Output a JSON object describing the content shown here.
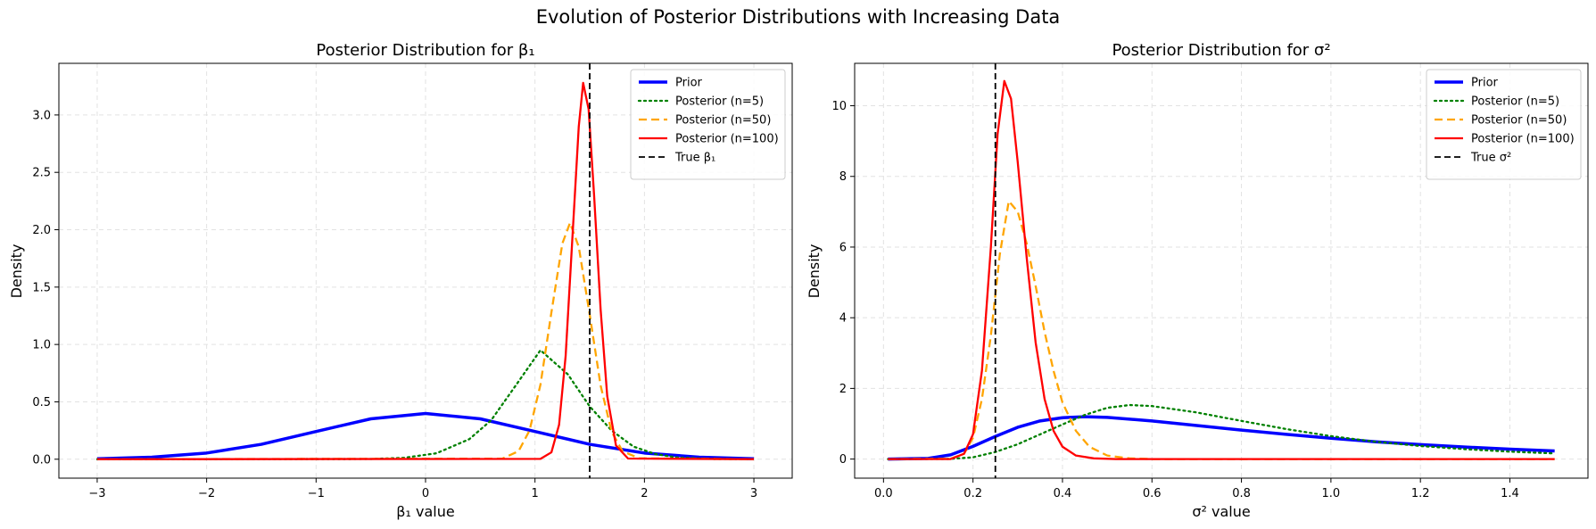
{
  "figure": {
    "title": "Evolution of Posterior Distributions with Increasing Data"
  },
  "chart_data": [
    {
      "type": "line",
      "title": "Posterior Distribution for β₁",
      "xlabel": "β₁ value",
      "ylabel": "Density",
      "xlim": [
        -3.35,
        3.35
      ],
      "ylim": [
        -0.165,
        3.45
      ],
      "xticks": [
        -3,
        -2,
        -1,
        0,
        1,
        2,
        3
      ],
      "xtick_labels": [
        "−3",
        "−2",
        "−1",
        "0",
        "1",
        "2",
        "3"
      ],
      "yticks": [
        0,
        0.5,
        1,
        1.5,
        2,
        2.5,
        3
      ],
      "ytick_labels": [
        "0.0",
        "0.5",
        "1.0",
        "1.5",
        "2.0",
        "2.5",
        "3.0"
      ],
      "grid": true,
      "legend_position": "top-right",
      "reference_line": {
        "name": "True β₁",
        "x": 1.5,
        "color": "#000000"
      },
      "series": [
        {
          "name": "Prior",
          "color": "#0000ff",
          "style": "solid",
          "x": [
            -3,
            -2.5,
            -2,
            -1.5,
            -1,
            -0.5,
            0,
            0.5,
            1,
            1.5,
            2,
            2.5,
            3
          ],
          "y": [
            0.004,
            0.018,
            0.054,
            0.13,
            0.242,
            0.352,
            0.399,
            0.352,
            0.242,
            0.13,
            0.054,
            0.018,
            0.004
          ]
        },
        {
          "name": "Posterior (n=5)",
          "color": "#008000",
          "style": "dotted",
          "x": [
            -3,
            -0.5,
            -0.2,
            0.1,
            0.4,
            0.6,
            0.8,
            1.05,
            1.3,
            1.5,
            1.7,
            1.9,
            2.1,
            2.3,
            2.6,
            3
          ],
          "y": [
            0,
            0.002,
            0.012,
            0.052,
            0.175,
            0.34,
            0.61,
            0.95,
            0.74,
            0.46,
            0.25,
            0.11,
            0.045,
            0.015,
            0.003,
            0
          ]
        },
        {
          "name": "Posterior (n=50)",
          "color": "#ffa500",
          "style": "dashed",
          "x": [
            -3,
            0.7,
            0.85,
            0.95,
            1.05,
            1.15,
            1.25,
            1.32,
            1.4,
            1.5,
            1.6,
            1.7,
            1.8,
            1.95,
            3
          ],
          "y": [
            0,
            0.005,
            0.07,
            0.25,
            0.65,
            1.28,
            1.88,
            2.06,
            1.85,
            1.26,
            0.64,
            0.24,
            0.07,
            0.008,
            0
          ]
        },
        {
          "name": "Posterior (n=100)",
          "color": "#ff0000",
          "style": "solid",
          "x": [
            -3,
            1.05,
            1.15,
            1.22,
            1.28,
            1.34,
            1.4,
            1.44,
            1.49,
            1.54,
            1.6,
            1.66,
            1.74,
            1.85,
            3
          ],
          "y": [
            0,
            0.003,
            0.06,
            0.3,
            0.9,
            1.9,
            2.9,
            3.28,
            3.05,
            2.3,
            1.3,
            0.55,
            0.12,
            0.006,
            0
          ]
        }
      ]
    },
    {
      "type": "line",
      "title": "Posterior Distribution for σ²",
      "xlabel": "σ² value",
      "ylabel": "Density",
      "xlim": [
        -0.0645,
        1.5745
      ],
      "ylim": [
        -0.54,
        11.2
      ],
      "xticks": [
        0.0,
        0.2,
        0.4,
        0.6,
        0.8,
        1.0,
        1.2,
        1.4
      ],
      "xtick_labels": [
        "0.0",
        "0.2",
        "0.4",
        "0.6",
        "0.8",
        "1.0",
        "1.2",
        "1.4"
      ],
      "yticks": [
        0,
        2,
        4,
        6,
        8,
        10
      ],
      "ytick_labels": [
        "0",
        "2",
        "4",
        "6",
        "8",
        "10"
      ],
      "grid": true,
      "legend_position": "top-right",
      "reference_line": {
        "name": "True σ²",
        "x": 0.25,
        "color": "#000000"
      },
      "series": [
        {
          "name": "Prior",
          "color": "#0000ff",
          "style": "solid",
          "x": [
            0.01,
            0.1,
            0.15,
            0.2,
            0.25,
            0.3,
            0.35,
            0.4,
            0.45,
            0.5,
            0.6,
            0.7,
            0.8,
            0.9,
            1.0,
            1.1,
            1.2,
            1.3,
            1.4,
            1.5
          ],
          "y": [
            0,
            0.02,
            0.12,
            0.36,
            0.64,
            0.9,
            1.08,
            1.17,
            1.2,
            1.18,
            1.08,
            0.95,
            0.82,
            0.7,
            0.59,
            0.49,
            0.41,
            0.34,
            0.28,
            0.23
          ]
        },
        {
          "name": "Posterior (n=5)",
          "color": "#008000",
          "style": "dotted",
          "x": [
            0.01,
            0.15,
            0.2,
            0.25,
            0.3,
            0.35,
            0.4,
            0.45,
            0.5,
            0.55,
            0.6,
            0.7,
            0.8,
            0.9,
            1.0,
            1.1,
            1.2,
            1.3,
            1.4,
            1.5
          ],
          "y": [
            0,
            0.005,
            0.05,
            0.2,
            0.42,
            0.7,
            0.98,
            1.25,
            1.45,
            1.53,
            1.5,
            1.32,
            1.08,
            0.85,
            0.65,
            0.49,
            0.37,
            0.28,
            0.21,
            0.16
          ]
        },
        {
          "name": "Posterior (n=50)",
          "color": "#ffa500",
          "style": "dashed",
          "x": [
            0.01,
            0.15,
            0.18,
            0.2,
            0.22,
            0.24,
            0.26,
            0.28,
            0.3,
            0.32,
            0.34,
            0.36,
            0.38,
            0.4,
            0.43,
            0.46,
            0.5,
            0.55,
            0.6,
            1.5
          ],
          "y": [
            0,
            0.01,
            0.15,
            0.6,
            1.7,
            3.5,
            5.8,
            7.3,
            7.0,
            6.1,
            4.9,
            3.6,
            2.5,
            1.6,
            0.8,
            0.35,
            0.1,
            0.02,
            0,
            0
          ]
        },
        {
          "name": "Posterior (n=100)",
          "color": "#ff0000",
          "style": "solid",
          "x": [
            0.01,
            0.15,
            0.18,
            0.2,
            0.22,
            0.24,
            0.255,
            0.27,
            0.285,
            0.3,
            0.32,
            0.34,
            0.36,
            0.38,
            0.4,
            0.43,
            0.47,
            0.52,
            1.5
          ],
          "y": [
            0,
            0,
            0.15,
            0.7,
            2.5,
            6.0,
            9.2,
            10.7,
            10.2,
            8.4,
            5.7,
            3.3,
            1.7,
            0.8,
            0.35,
            0.1,
            0.02,
            0,
            0
          ]
        }
      ]
    }
  ]
}
